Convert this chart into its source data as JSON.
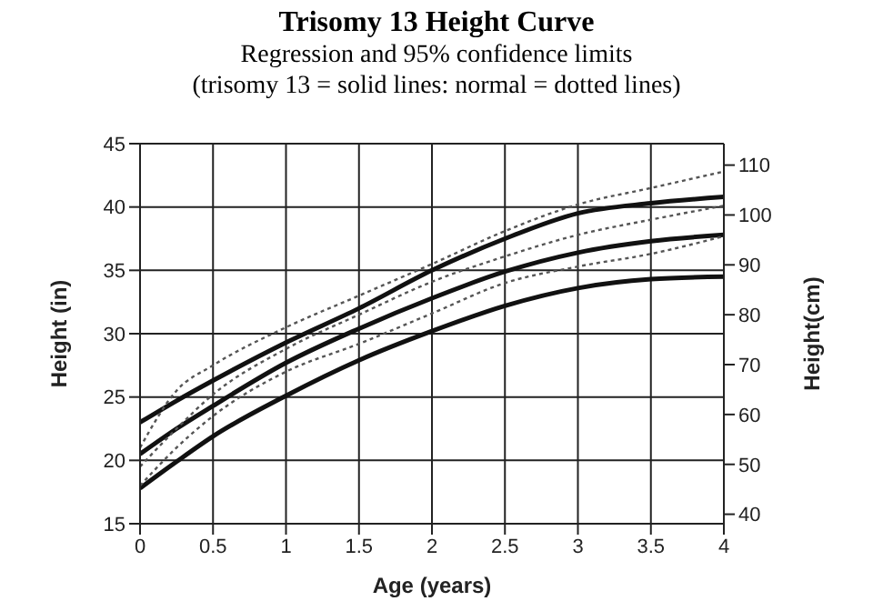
{
  "chart_data": {
    "type": "line",
    "title": "Trisomy 13 Height Curve",
    "subtitle": "Regression and 95% confidence limits\n(trisomy 13 = solid lines: normal = dotted lines)",
    "xlabel": "Age (years)",
    "ylabel": "Height (in)",
    "y2label": "Height(cm)",
    "x": [
      0,
      0.25,
      0.5,
      1,
      1.5,
      2,
      2.5,
      3,
      3.5,
      4
    ],
    "series": [
      {
        "color": "#111111",
        "line_style": "solid",
        "values": [
          23.0,
          24.7,
          26.3,
          29.3,
          32.0,
          35.0,
          37.5,
          39.5,
          40.3,
          40.8
        ]
      },
      {
        "color": "#111111",
        "line_style": "solid",
        "values": [
          20.5,
          22.5,
          24.3,
          27.7,
          30.4,
          32.8,
          34.9,
          36.4,
          37.3,
          37.8
        ]
      },
      {
        "color": "#111111",
        "line_style": "solid",
        "values": [
          17.8,
          19.9,
          21.9,
          25.1,
          27.9,
          30.2,
          32.2,
          33.6,
          34.3,
          34.5
        ]
      },
      {
        "color": "#555555",
        "line_style": "dotted",
        "values": [
          21.0,
          25.5,
          27.5,
          30.5,
          33.0,
          35.5,
          38.1,
          40.2,
          41.5,
          42.8
        ]
      },
      {
        "color": "#555555",
        "line_style": "dotted",
        "values": [
          19.5,
          22.5,
          25.2,
          28.8,
          31.5,
          34.1,
          36.1,
          37.8,
          39.0,
          40.1
        ]
      },
      {
        "color": "#555555",
        "line_style": "dotted",
        "values": [
          18.0,
          21.0,
          23.5,
          27.0,
          29.2,
          31.6,
          34.0,
          35.3,
          36.3,
          37.7
        ]
      }
    ],
    "xlim": [
      0,
      4
    ],
    "xticks": [
      0,
      0.5,
      1,
      1.5,
      2,
      2.5,
      3,
      3.5,
      4
    ],
    "ylim": [
      15,
      45
    ],
    "yticks": [
      15,
      20,
      25,
      30,
      35,
      40,
      45
    ],
    "y2lim": [
      38.1,
      114.3
    ],
    "y2ticks": [
      40,
      50,
      60,
      70,
      80,
      90,
      100,
      110
    ],
    "grid": true,
    "marker": "none"
  }
}
